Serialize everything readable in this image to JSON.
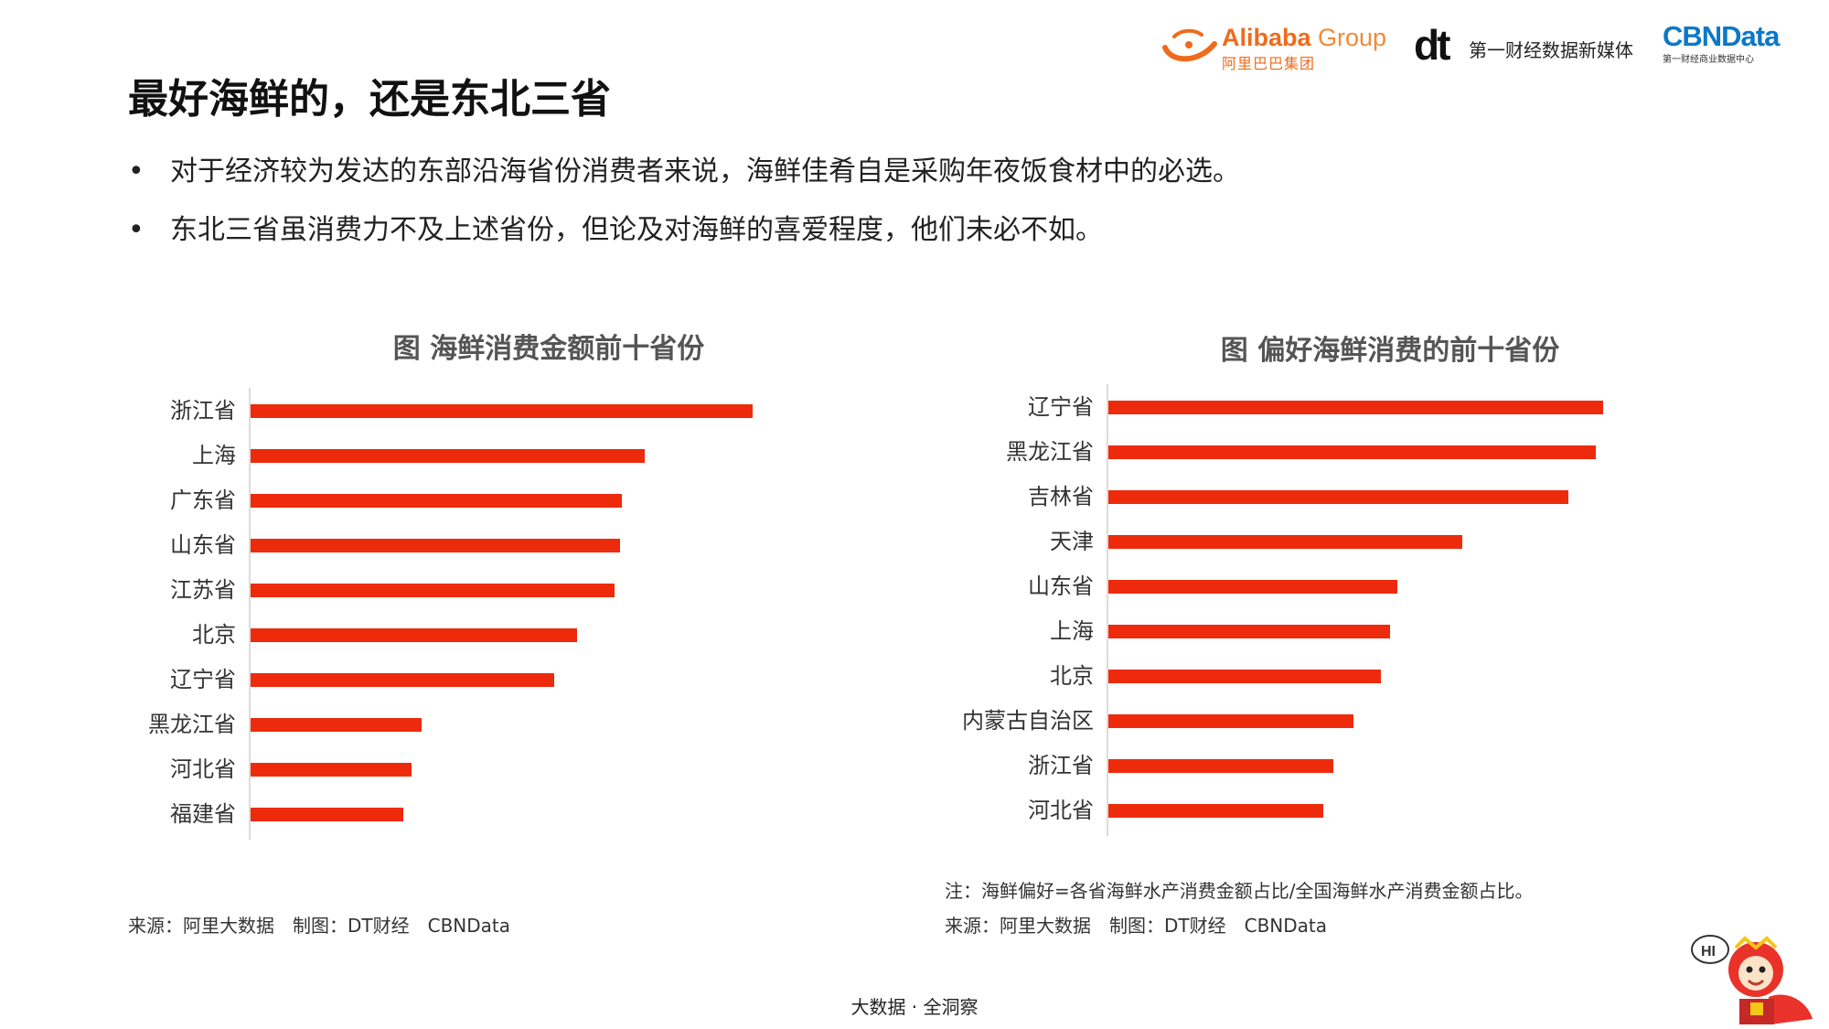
{
  "header": {
    "alibaba_brand": "Alibaba",
    "alibaba_group": " Group",
    "alibaba_cn": "阿里巴巴集团",
    "dt_mark": "dt",
    "dt_text": "第一财经数据新媒体",
    "cbn_mark": "CBNData",
    "cbn_sub": "第一财经商业数据中心"
  },
  "page": {
    "title": "最好海鲜的，还是东北三省",
    "bullets": [
      "对于经济较为发达的东部沿海省份消费者来说，海鲜佳肴自是采购年夜饭食材中的必选。",
      "东北三省虽消费力不及上述省份，但论及对海鲜的喜爱程度，他们未必不如。"
    ],
    "bullet_symbol": "•"
  },
  "colors": {
    "bar": "#ed2b0c",
    "axis": "#dcdcdc"
  },
  "chart_data": [
    {
      "type": "bar",
      "orientation": "horizontal",
      "title": "图 海鲜消费金额前十省份",
      "categories": [
        "浙江省",
        "上海",
        "广东省",
        "山东省",
        "江苏省",
        "北京",
        "辽宁省",
        "黑龙江省",
        "河北省",
        "福建省"
      ],
      "values": [
        100,
        78.5,
        74,
        73.5,
        72.5,
        65,
        60.5,
        34,
        32,
        30.5
      ],
      "xlabel": "",
      "ylabel": "",
      "xlim": [
        0,
        100
      ],
      "axis_ticks_shown": false
    },
    {
      "type": "bar",
      "orientation": "horizontal",
      "title": "图 偏好海鲜消费的前十省份",
      "categories": [
        "辽宁省",
        "黑龙江省",
        "吉林省",
        "天津",
        "山东省",
        "上海",
        "北京",
        "内蒙古自治区",
        "浙江省",
        "河北省"
      ],
      "values": [
        100,
        98.5,
        93,
        71.5,
        58.5,
        57,
        55,
        49.5,
        45.5,
        43.5
      ],
      "xlabel": "",
      "ylabel": "",
      "xlim": [
        0,
        100
      ],
      "axis_ticks_shown": false
    }
  ],
  "notes": {
    "left_source": "来源：阿里大数据　制图：DT财经　CBNData",
    "right_note": "注：海鲜偏好=各省海鲜水产消费金额占比/全国海鲜水产消费金额占比。",
    "right_source": "来源：阿里大数据　制图：DT财经　CBNData"
  },
  "footer": {
    "text": "大数据 · 全洞察"
  },
  "mascot": {
    "label": "HI"
  }
}
